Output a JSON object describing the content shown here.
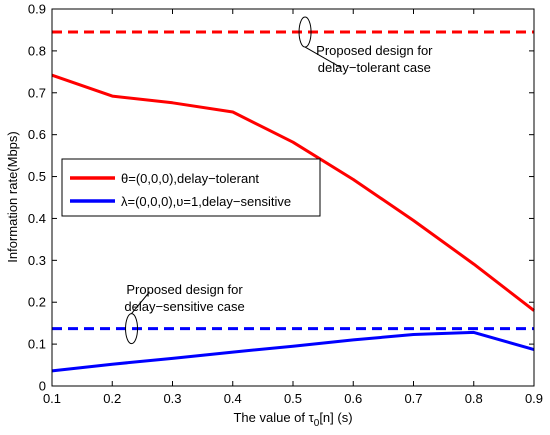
{
  "chart_data": {
    "type": "line",
    "xlabel": "The value of τ0[n] (s)",
    "xlabel_parts": {
      "prefix": "The value of τ",
      "sub": "0",
      "suffix": "[n] (s)"
    },
    "ylabel": "Information rate(Mbps)",
    "xlim": [
      0.1,
      0.9
    ],
    "ylim": [
      0,
      0.9
    ],
    "xticks": [
      0.1,
      0.2,
      0.3,
      0.4,
      0.5,
      0.6,
      0.7,
      0.8,
      0.9
    ],
    "yticks": [
      0,
      0.1,
      0.2,
      0.3,
      0.4,
      0.5,
      0.6,
      0.7,
      0.8,
      0.9
    ],
    "xtick_labels": [
      "0.1",
      "0.2",
      "0.3",
      "0.4",
      "0.5",
      "0.6",
      "0.7",
      "0.8",
      "0.9"
    ],
    "ytick_labels": [
      "0",
      "0.1",
      "0.2",
      "0.3",
      "0.4",
      "0.5",
      "0.6",
      "0.7",
      "0.8",
      "0.9"
    ],
    "grid": false,
    "legend_position": "center-left",
    "series": [
      {
        "name": "θ=(0,0,0),delay−tolerant",
        "color": "#ff0000",
        "style": "solid",
        "x": [
          0.1,
          0.2,
          0.3,
          0.4,
          0.5,
          0.6,
          0.7,
          0.8,
          0.9
        ],
        "y": [
          0.742,
          0.692,
          0.676,
          0.654,
          0.582,
          0.493,
          0.395,
          0.291,
          0.18
        ]
      },
      {
        "name": "λ=(0,0,0),υ=1,delay−sensitive",
        "color": "#0000ff",
        "style": "solid",
        "x": [
          0.1,
          0.2,
          0.3,
          0.4,
          0.5,
          0.6,
          0.7,
          0.8,
          0.9
        ],
        "y": [
          0.036,
          0.052,
          0.066,
          0.081,
          0.095,
          0.11,
          0.123,
          0.128,
          0.087
        ]
      },
      {
        "color": "#ff0000",
        "style": "dashed",
        "x": [
          0.1,
          0.9
        ],
        "y": [
          0.845,
          0.845
        ]
      },
      {
        "color": "#0000ff",
        "style": "dashed",
        "x": [
          0.1,
          0.9
        ],
        "y": [
          0.137,
          0.137
        ]
      }
    ],
    "annotations": [
      {
        "lines": [
          "Proposed design for",
          "delay−tolerant case"
        ],
        "ellipse_at": {
          "x": 0.52,
          "y": 0.845
        },
        "text_at": {
          "x": 0.635,
          "y": 0.79
        },
        "pointer_to": {
          "x": 0.58,
          "y": 0.76
        }
      },
      {
        "lines": [
          "Proposed design for",
          "delay−sensitive case"
        ],
        "ellipse_at": {
          "x": 0.232,
          "y": 0.137
        },
        "text_at": {
          "x": 0.32,
          "y": 0.22
        },
        "pointer_to": {
          "x": 0.262,
          "y": 0.225
        }
      }
    ]
  }
}
